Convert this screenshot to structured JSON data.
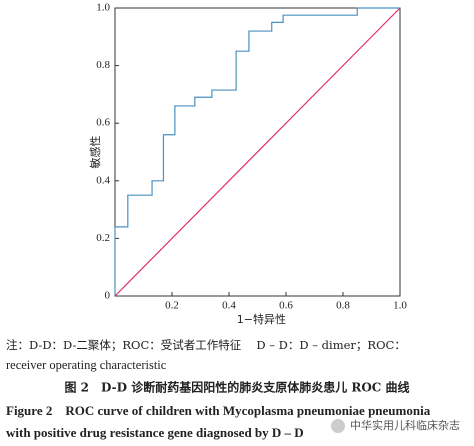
{
  "chart_data": {
    "type": "line",
    "xlabel": "1−特异性",
    "ylabel": "敏感性",
    "xlim": [
      0,
      1
    ],
    "ylim": [
      0,
      1
    ],
    "xticks": [
      0.2,
      0.4,
      0.6,
      0.8,
      {
        "value": 1,
        "label": "1.0"
      }
    ],
    "yticks": [
      0,
      0.2,
      0.4,
      0.6,
      0.8,
      {
        "value": 1,
        "label": "1.0"
      }
    ],
    "series": [
      {
        "color": "#4a90c2",
        "x": [
          0,
          0,
          0.045,
          0.045,
          0.13,
          0.13,
          0.17,
          0.17,
          0.21,
          0.21,
          0.28,
          0.28,
          0.34,
          0.34,
          0.425,
          0.425,
          0.47,
          0.47,
          0.55,
          0.55,
          0.59,
          0.59,
          0.85,
          0.85,
          1
        ],
        "values": [
          0,
          0.24,
          0.24,
          0.35,
          0.35,
          0.4,
          0.4,
          0.56,
          0.56,
          0.66,
          0.66,
          0.69,
          0.69,
          0.715,
          0.715,
          0.85,
          0.85,
          0.92,
          0.92,
          0.95,
          0.95,
          0.975,
          0.975,
          1,
          1
        ]
      },
      {
        "color": "#e0306a",
        "x": [
          0,
          1
        ],
        "values": [
          0,
          1
        ]
      }
    ],
    "note_lines": [
      "注：D-D：D-二聚体；ROC：受试者工作特征　 D – D：D – dimer；ROC：",
      "receiver operating characteristic"
    ],
    "caption_cn": "图 2　D-D 诊断耐药基因阳性的肺炎支原体肺炎患儿 ROC 曲线",
    "caption_en_lines": [
      "Figure 2　ROC curve of children with Mycoplasma pneumoniae pneumonia",
      "with positive drug resistance gene diagnosed by D – D"
    ],
    "watermark": "中华实用儿科临床杂志"
  }
}
